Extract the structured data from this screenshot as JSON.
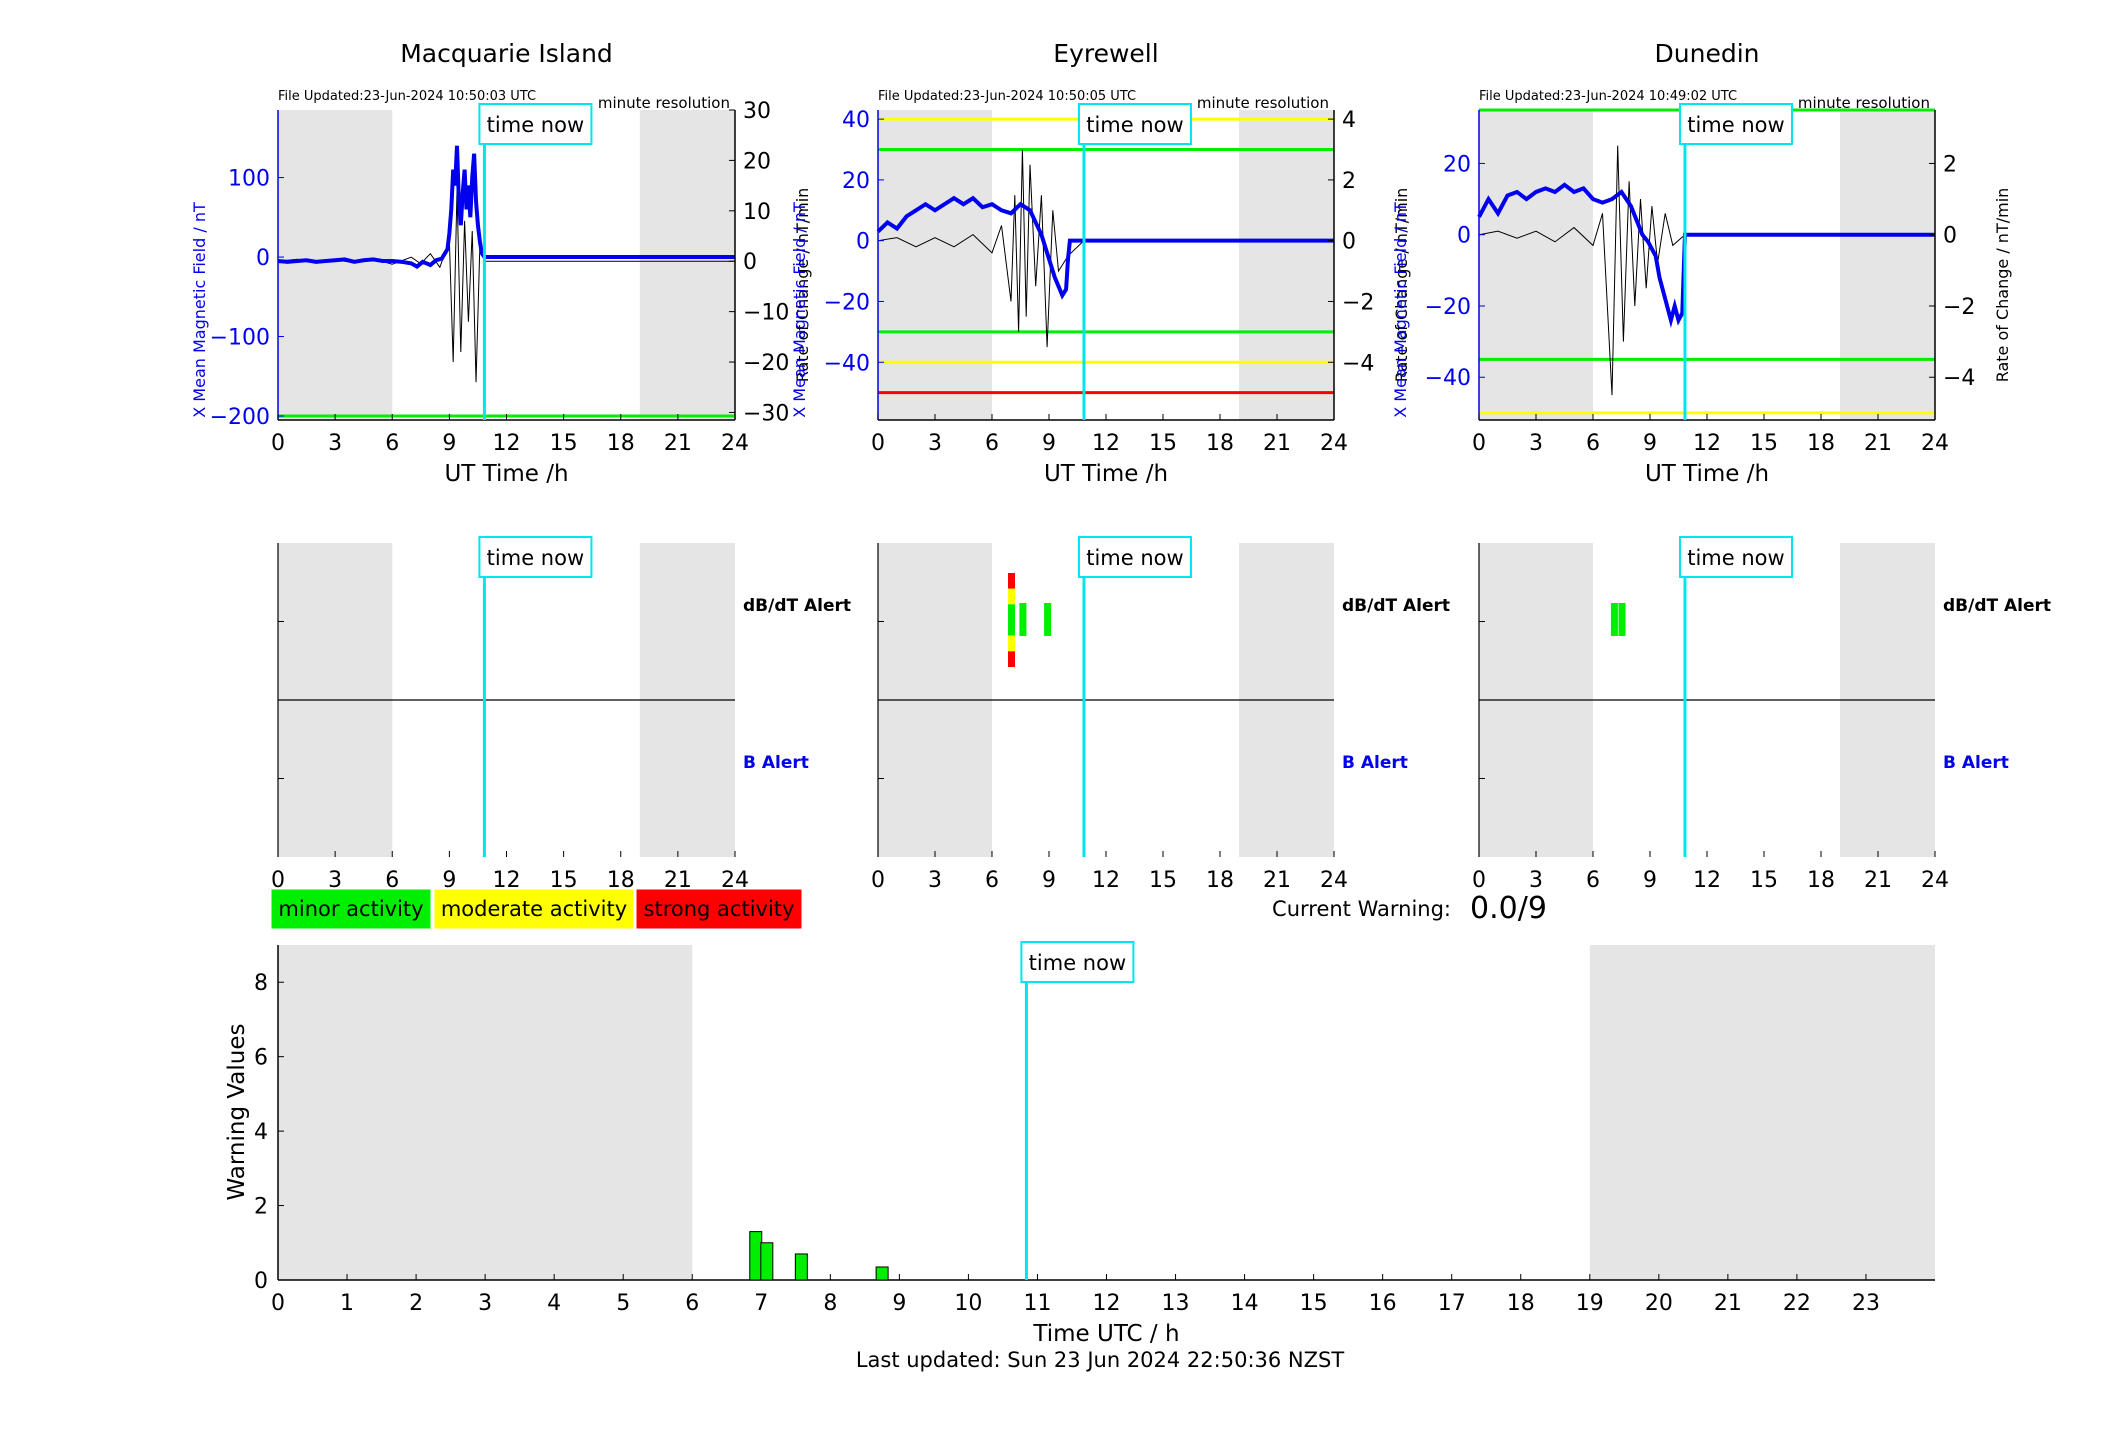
{
  "time_now_hours": 10.84,
  "time_now_label": "time now",
  "resolution_label": "minute resolution",
  "night_shading_hours": [
    [
      0,
      6
    ],
    [
      19,
      24
    ]
  ],
  "colors": {
    "field_line": "#0000ee",
    "rate_line": "#000000",
    "time_now": "#00e5ee",
    "night": "#e5e5e5",
    "minor": "#00ee00",
    "moderate": "#ffff00",
    "strong": "#ff0000",
    "axis_left": "#0000ee"
  },
  "stations": [
    {
      "name": "Macquarie Island",
      "file_updated": "File Updated:23-Jun-2024 10:50:03 UTC",
      "left_ylabel": "X Mean Magnetic Field / nT",
      "right_ylabel": "Rate of Change / nT/min",
      "xlabel": "UT Time /h",
      "left_ticks": [
        -200,
        -100,
        0,
        100
      ],
      "right_ticks": [
        -30,
        -20,
        -10,
        0,
        10,
        20,
        30
      ]
    },
    {
      "name": "Eyrewell",
      "file_updated": "File Updated:23-Jun-2024 10:50:05 UTC",
      "left_ylabel": "X Mean Magnetic Field / nT",
      "right_ylabel": "Rate of Change / nT/min",
      "xlabel": "UT Time /h",
      "left_ticks": [
        -40,
        -20,
        0,
        20,
        40
      ],
      "right_ticks": [
        -4,
        -2,
        0,
        2,
        4
      ]
    },
    {
      "name": "Dunedin",
      "file_updated": "File Updated:23-Jun-2024 10:49:02 UTC",
      "left_ylabel": "X Mean Magnetic Field / nT",
      "right_ylabel": "Rate of Change / nT/min",
      "xlabel": "UT Time /h",
      "left_ticks": [
        -40,
        -20,
        0,
        20
      ],
      "right_ticks": [
        -4,
        -2,
        0,
        2
      ]
    }
  ],
  "alert_panel": {
    "dbdt_label": "dB/dT Alert",
    "b_label": "B Alert"
  },
  "legend": {
    "minor": "minor activity",
    "moderate": "moderate activity",
    "strong": "strong activity"
  },
  "current_warning": {
    "label": "Current Warning:",
    "value": "0.0/9"
  },
  "last_updated": "Last updated: Sun 23 Jun 2024 22:50:36 NZST",
  "chart_data": [
    {
      "type": "line",
      "title": "Macquarie Island",
      "xlabel": "UT Time /h",
      "ylabel": "X Mean Magnetic Field / nT",
      "ylabel_right": "Rate of Change / nT/min",
      "xlim": [
        0,
        24
      ],
      "ylim": [
        -205,
        185
      ],
      "ylim_right": [
        -31.5,
        30
      ],
      "xticks": [
        0,
        3,
        6,
        9,
        12,
        15,
        18,
        21,
        24
      ],
      "threshold_lines": [
        {
          "y": -200,
          "color": "green"
        }
      ],
      "series": [
        {
          "axis": "left",
          "x": [
            0,
            0.5,
            1,
            1.5,
            2,
            2.5,
            3,
            3.5,
            4,
            4.5,
            5,
            5.5,
            6,
            6.5,
            7,
            7.3,
            7.6,
            8,
            8.3,
            8.6,
            8.9,
            9.0,
            9.1,
            9.2,
            9.3,
            9.4,
            9.5,
            9.6,
            9.7,
            9.8,
            9.9,
            10.0,
            10.1,
            10.2,
            10.3,
            10.4,
            10.5,
            10.6,
            10.7,
            10.84,
            12,
            15,
            18,
            21,
            24
          ],
          "y": [
            -5,
            -6,
            -5,
            -4,
            -6,
            -5,
            -4,
            -3,
            -6,
            -4,
            -3,
            -5,
            -5,
            -6,
            -8,
            -12,
            -6,
            -10,
            -4,
            -2,
            10,
            30,
            60,
            110,
            90,
            140,
            70,
            40,
            80,
            110,
            60,
            90,
            50,
            100,
            130,
            70,
            40,
            20,
            5,
            0,
            0,
            0,
            0,
            0,
            0
          ]
        },
        {
          "axis": "right",
          "x": [
            0,
            1,
            2,
            3,
            4,
            5,
            6,
            7,
            7.5,
            8,
            8.5,
            9,
            9.2,
            9.4,
            9.6,
            9.8,
            10.0,
            10.2,
            10.4,
            10.6,
            10.84,
            24
          ],
          "y": [
            0,
            0.4,
            -0.4,
            0.3,
            -0.3,
            0.5,
            -0.6,
            0.8,
            -0.5,
            1.5,
            -1.2,
            4,
            -20,
            14,
            -18,
            8,
            -12,
            6,
            -24,
            3,
            0,
            0
          ]
        }
      ]
    },
    {
      "type": "line",
      "title": "Eyrewell",
      "xlabel": "UT Time /h",
      "ylabel": "X Mean Magnetic Field / nT",
      "ylabel_right": "Rate of Change / nT/min",
      "xlim": [
        0,
        24
      ],
      "ylim": [
        -59,
        43
      ],
      "ylim_right": [
        -5.9,
        4.3
      ],
      "xticks": [
        0,
        3,
        6,
        9,
        12,
        15,
        18,
        21,
        24
      ],
      "threshold_lines": [
        {
          "y": 40,
          "color": "yellow"
        },
        {
          "y": 30,
          "color": "green"
        },
        {
          "y": -30,
          "color": "green"
        },
        {
          "y": -40,
          "color": "yellow"
        },
        {
          "y": -50,
          "color": "red"
        }
      ],
      "series": [
        {
          "axis": "left",
          "x": [
            0,
            0.5,
            1,
            1.5,
            2,
            2.5,
            3,
            3.5,
            4,
            4.5,
            5,
            5.5,
            6,
            6.5,
            7,
            7.5,
            8,
            8.3,
            8.6,
            8.9,
            9.1,
            9.3,
            9.5,
            9.7,
            9.9,
            10.0,
            10.1,
            10.84,
            12,
            15,
            18,
            21,
            24
          ],
          "y": [
            3,
            6,
            4,
            8,
            10,
            12,
            10,
            12,
            14,
            12,
            14,
            11,
            12,
            10,
            9,
            12,
            10,
            6,
            2,
            -4,
            -8,
            -12,
            -15,
            -18,
            -16,
            -6,
            0,
            0,
            0,
            0,
            0,
            0,
            0
          ]
        },
        {
          "axis": "right",
          "x": [
            0,
            1,
            2,
            3,
            4,
            5,
            6,
            6.5,
            7,
            7.2,
            7.4,
            7.6,
            7.8,
            8,
            8.3,
            8.6,
            8.9,
            9.2,
            9.5,
            10.0,
            10.84,
            24
          ],
          "y": [
            0,
            0.1,
            -0.2,
            0.1,
            -0.2,
            0.2,
            -0.4,
            0.5,
            -2,
            1.5,
            -3,
            3,
            -2.5,
            2.5,
            -1.5,
            1.5,
            -3.5,
            1,
            -1,
            -0.5,
            0,
            0
          ]
        }
      ]
    },
    {
      "type": "line",
      "title": "Dunedin",
      "xlabel": "UT Time /h",
      "ylabel": "X Mean Magnetic Field / nT",
      "ylabel_right": "Rate of Change / nT/min",
      "xlim": [
        0,
        24
      ],
      "ylim": [
        -52,
        35
      ],
      "ylim_right": [
        -5.2,
        3.5
      ],
      "xticks": [
        0,
        3,
        6,
        9,
        12,
        15,
        18,
        21,
        24
      ],
      "threshold_lines": [
        {
          "y": 35,
          "color": "green"
        },
        {
          "y": -35,
          "color": "green"
        },
        {
          "y": -50,
          "color": "yellow"
        }
      ],
      "series": [
        {
          "axis": "left",
          "x": [
            0,
            0.5,
            1,
            1.5,
            2,
            2.5,
            3,
            3.5,
            4,
            4.5,
            5,
            5.5,
            6,
            6.5,
            7,
            7.5,
            8,
            8.3,
            8.6,
            8.9,
            9.1,
            9.3,
            9.5,
            9.7,
            9.9,
            10.1,
            10.3,
            10.5,
            10.7,
            10.84,
            12,
            15,
            18,
            21,
            24
          ],
          "y": [
            5,
            10,
            6,
            11,
            12,
            10,
            12,
            13,
            12,
            14,
            12,
            13,
            10,
            9,
            10,
            12,
            8,
            4,
            0,
            -2,
            -4,
            -6,
            -12,
            -16,
            -20,
            -24,
            -20,
            -24,
            -22,
            0,
            0,
            0,
            0,
            0,
            0
          ]
        },
        {
          "axis": "right",
          "x": [
            0,
            1,
            2,
            3,
            4,
            5,
            6,
            6.5,
            7,
            7.3,
            7.6,
            7.9,
            8.2,
            8.5,
            8.8,
            9.1,
            9.4,
            9.8,
            10.2,
            10.84,
            24
          ],
          "y": [
            0,
            0.1,
            -0.1,
            0.1,
            -0.2,
            0.2,
            -0.3,
            0.6,
            -4.5,
            2.5,
            -3,
            1.5,
            -2,
            1,
            -1.5,
            0.8,
            -0.8,
            0.6,
            -0.3,
            0,
            0
          ]
        }
      ]
    },
    {
      "type": "bar",
      "title": "",
      "xlabel": "Time UTC / h",
      "ylabel": "Warning Values",
      "xlim": [
        0,
        24
      ],
      "ylim": [
        0,
        9
      ],
      "xticks": [
        0,
        1,
        2,
        3,
        4,
        5,
        6,
        7,
        8,
        9,
        10,
        11,
        12,
        13,
        14,
        15,
        16,
        17,
        18,
        19,
        20,
        21,
        22,
        23
      ],
      "yticks": [
        0,
        2,
        4,
        6,
        8
      ],
      "bars": [
        {
          "x": 6.92,
          "value": 1.3,
          "level": "minor"
        },
        {
          "x": 7.08,
          "value": 1.0,
          "level": "minor"
        },
        {
          "x": 7.58,
          "value": 0.7,
          "level": "minor"
        },
        {
          "x": 8.75,
          "value": 0.35,
          "level": "minor"
        }
      ]
    }
  ],
  "alert_markers": [
    {
      "station": "Eyrewell",
      "dbdt": [
        {
          "x": 7.0,
          "levels_top_to_bottom": [
            "strong",
            "moderate",
            "minor",
            "minor",
            "moderate",
            "strong"
          ]
        },
        {
          "x": 7.6,
          "levels_top_to_bottom": [
            "minor"
          ]
        },
        {
          "x": 8.9,
          "levels_top_to_bottom": [
            "minor"
          ]
        }
      ]
    },
    {
      "station": "Dunedin",
      "dbdt": [
        {
          "x": 7.1,
          "levels_top_to_bottom": [
            "minor"
          ]
        },
        {
          "x": 7.5,
          "levels_top_to_bottom": [
            "minor"
          ]
        }
      ]
    }
  ]
}
